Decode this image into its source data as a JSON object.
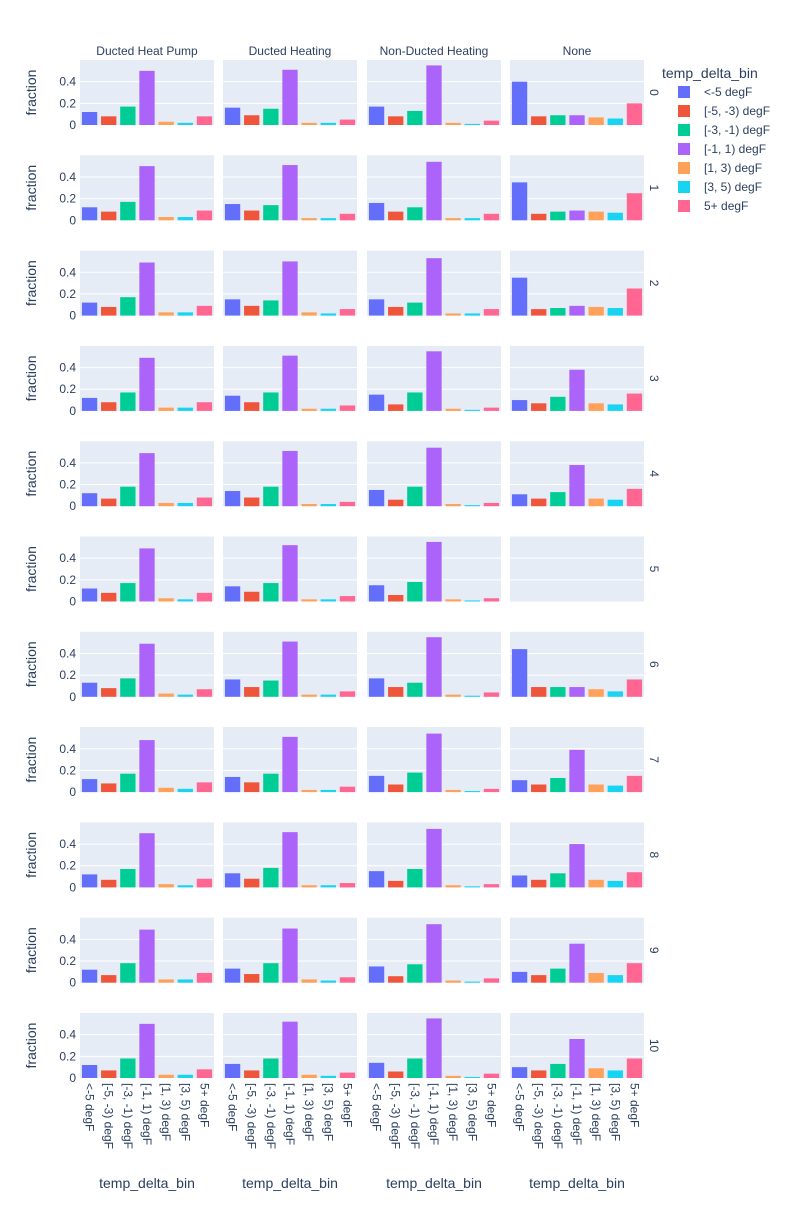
{
  "chart_data": {
    "type": "bar",
    "legend": {
      "title": "temp_delta_bin",
      "position": "top-right",
      "entries": [
        "<-5 degF",
        "[-5, -3) degF",
        "[-3, -1) degF",
        "[-1, 1) degF",
        "[1, 3) degF",
        "[3, 5) degF",
        "5+ degF"
      ]
    },
    "categories": [
      "<-5 degF",
      "[-5, -3) degF",
      "[-3, -1) degF",
      "[-1, 1) degF",
      "[1, 3) degF",
      "[3, 5) degF",
      "5+ degF"
    ],
    "colors": [
      "#636efa",
      "#EF553B",
      "#00cc96",
      "#ab63fa",
      "#FFA15A",
      "#19d3f3",
      "#FF6692"
    ],
    "columns": [
      "Ducted Heat Pump",
      "Ducted Heating",
      "Non-Ducted Heating",
      "None"
    ],
    "rows": [
      "0",
      "1",
      "2",
      "3",
      "4",
      "5",
      "6",
      "7",
      "8",
      "9",
      "10"
    ],
    "xlabel": "temp_delta_bin",
    "ylabel": "fraction",
    "ylim": [
      0,
      0.6
    ],
    "yticks": [
      0,
      0.2,
      0.4
    ],
    "yticklabels": [
      "0",
      "0.2",
      "0.4"
    ],
    "grid": true,
    "panels": [
      [
        [
          0.12,
          0.08,
          0.17,
          0.5,
          0.03,
          0.02,
          0.08
        ],
        [
          0.16,
          0.09,
          0.15,
          0.51,
          0.02,
          0.02,
          0.05
        ],
        [
          0.17,
          0.08,
          0.13,
          0.55,
          0.02,
          0.01,
          0.04
        ],
        [
          0.4,
          0.08,
          0.09,
          0.09,
          0.07,
          0.06,
          0.2
        ]
      ],
      [
        [
          0.12,
          0.08,
          0.17,
          0.5,
          0.03,
          0.03,
          0.09
        ],
        [
          0.15,
          0.09,
          0.14,
          0.51,
          0.02,
          0.02,
          0.06
        ],
        [
          0.16,
          0.08,
          0.12,
          0.54,
          0.02,
          0.02,
          0.06
        ],
        [
          0.35,
          0.06,
          0.08,
          0.09,
          0.08,
          0.07,
          0.25
        ]
      ],
      [
        [
          0.12,
          0.08,
          0.17,
          0.49,
          0.03,
          0.03,
          0.09
        ],
        [
          0.15,
          0.09,
          0.14,
          0.5,
          0.03,
          0.02,
          0.06
        ],
        [
          0.15,
          0.08,
          0.12,
          0.53,
          0.02,
          0.02,
          0.06
        ],
        [
          0.35,
          0.06,
          0.07,
          0.09,
          0.08,
          0.07,
          0.25
        ]
      ],
      [
        [
          0.12,
          0.08,
          0.17,
          0.49,
          0.03,
          0.03,
          0.08
        ],
        [
          0.14,
          0.08,
          0.17,
          0.51,
          0.02,
          0.02,
          0.05
        ],
        [
          0.15,
          0.06,
          0.17,
          0.55,
          0.02,
          0.01,
          0.03
        ],
        [
          0.1,
          0.07,
          0.13,
          0.38,
          0.07,
          0.06,
          0.16
        ]
      ],
      [
        [
          0.12,
          0.07,
          0.18,
          0.49,
          0.03,
          0.03,
          0.08
        ],
        [
          0.14,
          0.08,
          0.18,
          0.51,
          0.02,
          0.02,
          0.04
        ],
        [
          0.15,
          0.06,
          0.18,
          0.54,
          0.02,
          0.01,
          0.03
        ],
        [
          0.11,
          0.07,
          0.13,
          0.38,
          0.07,
          0.06,
          0.16
        ]
      ],
      [
        [
          0.12,
          0.08,
          0.17,
          0.49,
          0.03,
          0.02,
          0.08
        ],
        [
          0.14,
          0.09,
          0.17,
          0.52,
          0.02,
          0.02,
          0.05
        ],
        [
          0.15,
          0.06,
          0.18,
          0.55,
          0.02,
          0.01,
          0.03
        ],
        []
      ],
      [
        [
          0.13,
          0.08,
          0.17,
          0.49,
          0.03,
          0.02,
          0.07
        ],
        [
          0.16,
          0.09,
          0.15,
          0.51,
          0.02,
          0.02,
          0.05
        ],
        [
          0.17,
          0.09,
          0.13,
          0.55,
          0.02,
          0.01,
          0.04
        ],
        [
          0.44,
          0.09,
          0.09,
          0.09,
          0.07,
          0.05,
          0.16
        ]
      ],
      [
        [
          0.12,
          0.08,
          0.17,
          0.48,
          0.04,
          0.03,
          0.09
        ],
        [
          0.14,
          0.09,
          0.17,
          0.51,
          0.02,
          0.02,
          0.05
        ],
        [
          0.15,
          0.07,
          0.18,
          0.54,
          0.02,
          0.01,
          0.03
        ],
        [
          0.11,
          0.07,
          0.13,
          0.39,
          0.07,
          0.06,
          0.15
        ]
      ],
      [
        [
          0.12,
          0.07,
          0.17,
          0.5,
          0.03,
          0.02,
          0.08
        ],
        [
          0.13,
          0.08,
          0.18,
          0.51,
          0.02,
          0.02,
          0.04
        ],
        [
          0.15,
          0.06,
          0.17,
          0.54,
          0.02,
          0.01,
          0.03
        ],
        [
          0.11,
          0.07,
          0.13,
          0.4,
          0.07,
          0.06,
          0.14
        ]
      ],
      [
        [
          0.12,
          0.07,
          0.18,
          0.49,
          0.03,
          0.03,
          0.09
        ],
        [
          0.13,
          0.08,
          0.18,
          0.5,
          0.03,
          0.02,
          0.05
        ],
        [
          0.15,
          0.06,
          0.17,
          0.54,
          0.02,
          0.01,
          0.04
        ],
        [
          0.1,
          0.07,
          0.13,
          0.36,
          0.09,
          0.07,
          0.18
        ]
      ],
      [
        [
          0.12,
          0.07,
          0.18,
          0.5,
          0.03,
          0.03,
          0.08
        ],
        [
          0.13,
          0.07,
          0.18,
          0.52,
          0.03,
          0.02,
          0.05
        ],
        [
          0.14,
          0.06,
          0.18,
          0.55,
          0.02,
          0.01,
          0.04
        ],
        [
          0.1,
          0.07,
          0.13,
          0.36,
          0.09,
          0.07,
          0.18
        ]
      ]
    ]
  }
}
